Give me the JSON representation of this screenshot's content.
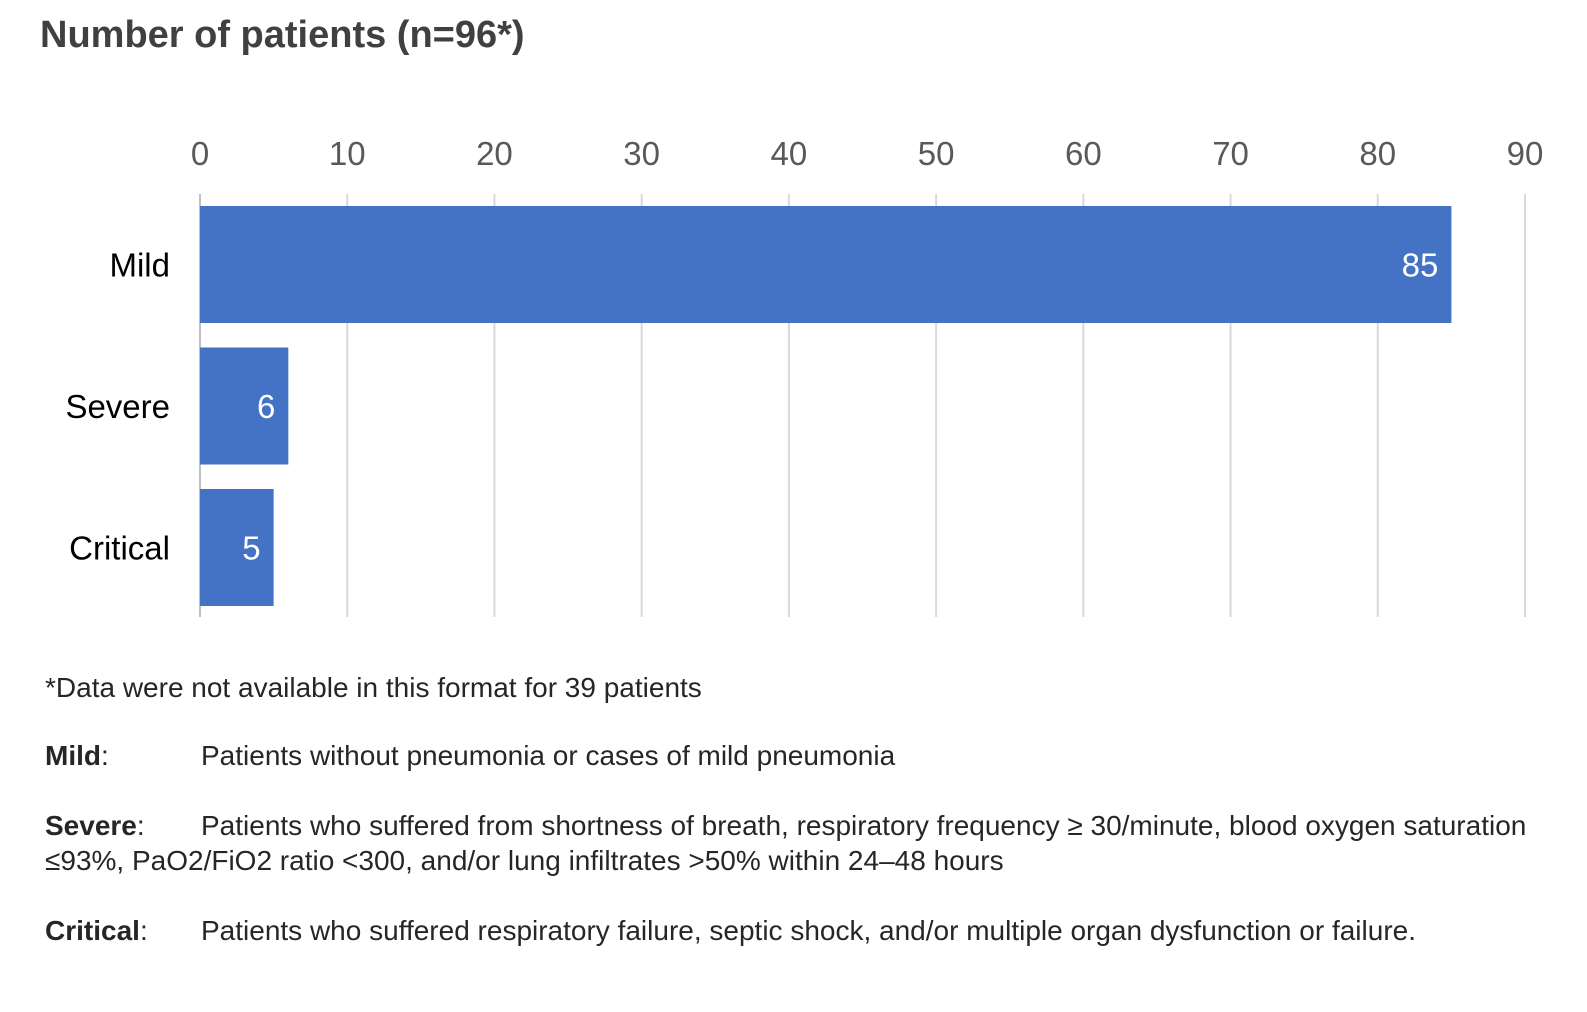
{
  "title": "Number of patients (n=96*)",
  "colors": {
    "bar": "#4472C4",
    "grid": "#D9D9D9",
    "axis": "#BFBFBF",
    "title": "#404040",
    "tick": "#595959"
  },
  "chart_data": {
    "type": "bar",
    "orientation": "horizontal",
    "title": "Number of patients (n=96*)",
    "categories": [
      "Mild",
      "Severe",
      "Critical"
    ],
    "values": [
      85,
      6,
      5
    ],
    "data_labels": [
      "85",
      "6",
      "5"
    ],
    "xlim": [
      0,
      90
    ],
    "x_ticks": [
      0,
      10,
      20,
      30,
      40,
      50,
      60,
      70,
      80,
      90
    ],
    "x_axis_position": "top",
    "grid": true,
    "legend": "none"
  },
  "notes": {
    "footnote": "*Data were not available in this format for 39 patients",
    "definitions": [
      {
        "term": "Mild",
        "sep": ":",
        "text": "Patients without pneumonia or cases of mild pneumonia"
      },
      {
        "term": "Severe",
        "sep": ":",
        "text": "Patients who suffered from shortness of breath, respiratory frequency ≥ 30/minute, blood oxygen saturation ≤93%, PaO2/FiO2 ratio <300, and/or lung infiltrates >50% within 24–48 hours"
      },
      {
        "term": "Critical",
        "sep": ":",
        "text": "Patients who suffered respiratory failure, septic shock, and/or multiple organ dysfunction or failure."
      }
    ]
  }
}
